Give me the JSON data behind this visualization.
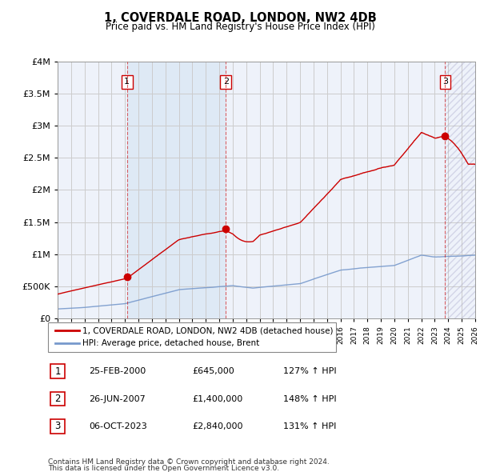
{
  "title": "1, COVERDALE ROAD, LONDON, NW2 4DB",
  "subtitle": "Price paid vs. HM Land Registry's House Price Index (HPI)",
  "legend_line1": "1, COVERDALE ROAD, LONDON, NW2 4DB (detached house)",
  "legend_line2": "HPI: Average price, detached house, Brent",
  "footnote1": "Contains HM Land Registry data © Crown copyright and database right 2024.",
  "footnote2": "This data is licensed under the Open Government Licence v3.0.",
  "sales": [
    {
      "num": 1,
      "date": "25-FEB-2000",
      "price": "£645,000",
      "hpi": "127% ↑ HPI",
      "year": 2000.15,
      "value": 645000
    },
    {
      "num": 2,
      "date": "26-JUN-2007",
      "price": "£1,400,000",
      "hpi": "148% ↑ HPI",
      "year": 2007.49,
      "value": 1400000
    },
    {
      "num": 3,
      "date": "06-OCT-2023",
      "price": "£2,840,000",
      "hpi": "131% ↑ HPI",
      "year": 2023.77,
      "value": 2840000
    }
  ],
  "red_color": "#cc0000",
  "blue_color": "#7799cc",
  "shade_color": "#dde8f5",
  "grid_color": "#cccccc",
  "bg_color": "#ffffff",
  "plot_bg": "#eef2fa",
  "ylim": [
    0,
    4000000
  ],
  "xlim": [
    1995,
    2026
  ],
  "yticks": [
    0,
    500000,
    1000000,
    1500000,
    2000000,
    2500000,
    3000000,
    3500000,
    4000000
  ]
}
